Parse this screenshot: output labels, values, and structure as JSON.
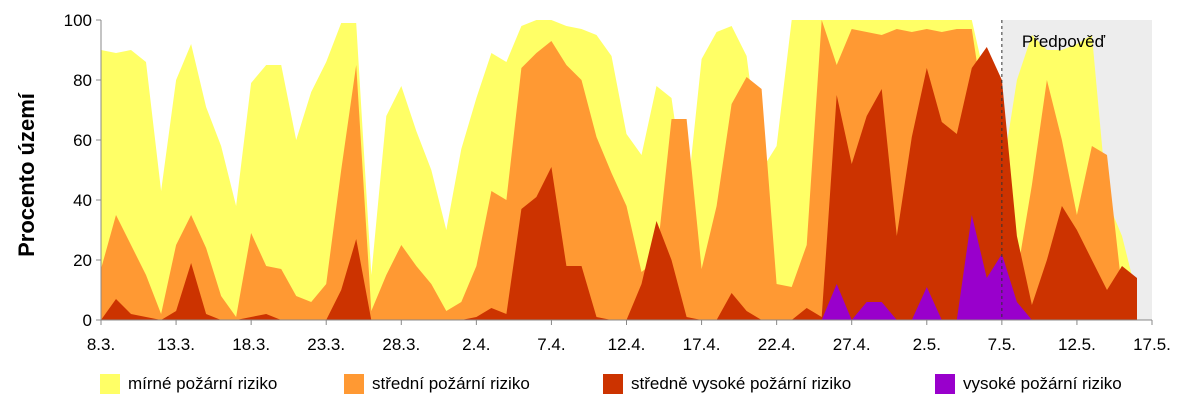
{
  "chart_data": {
    "type": "area",
    "title": "",
    "xlabel": "",
    "ylabel": "Procento území",
    "ylim": [
      0,
      100
    ],
    "yticks": [
      "0",
      "20",
      "40",
      "60",
      "80",
      "100"
    ],
    "x_tick_labels": [
      "8.3.",
      "13.3.",
      "18.3.",
      "23.3.",
      "28.3.",
      "2.4.",
      "7.4.",
      "12.4.",
      "17.4.",
      "22.4.",
      "27.4.",
      "2.5.",
      "7.5.",
      "12.5.",
      "17.5."
    ],
    "forecast_label": "Předpověď",
    "forecast_from_day": 60,
    "x_start": "8.3.",
    "series": [
      {
        "name": "mírné požární riziko",
        "color": "#FFFF66",
        "values": [
          90,
          89,
          90,
          86,
          43,
          80,
          92,
          71,
          58,
          38,
          79,
          85,
          85,
          60,
          76,
          86,
          99,
          99,
          15,
          68,
          78,
          63,
          50,
          30,
          57,
          74,
          89,
          86,
          98,
          100,
          100,
          98,
          97,
          95,
          88,
          62,
          55,
          78,
          74,
          39,
          87,
          96,
          98,
          88,
          50,
          58,
          100,
          100,
          100,
          100,
          100,
          100,
          100,
          100,
          100,
          100,
          100,
          100,
          100,
          78,
          48,
          80,
          95,
          90,
          90,
          92,
          95,
          40,
          28,
          8
        ]
      },
      {
        "name": "střední požární riziko",
        "color": "#FF9933",
        "values": [
          17,
          35,
          25,
          15,
          2,
          25,
          35,
          24,
          8,
          1,
          29,
          18,
          17,
          8,
          6,
          12,
          50,
          85,
          3,
          15,
          25,
          18,
          12,
          3,
          6,
          18,
          43,
          40,
          84,
          89,
          93,
          85,
          80,
          61,
          49,
          38,
          16,
          20,
          67,
          67,
          17,
          38,
          72,
          81,
          77,
          12,
          11,
          25,
          100,
          85,
          97,
          96,
          95,
          97,
          96,
          97,
          96,
          97,
          97,
          64,
          26,
          15,
          45,
          80,
          60,
          35,
          58,
          55,
          10,
          0
        ]
      },
      {
        "name": "středně vysoké požární riziko",
        "color": "#CC3300",
        "values": [
          0,
          7,
          2,
          1,
          0,
          3,
          19,
          2,
          0,
          0,
          1,
          2,
          0,
          0,
          0,
          0,
          10,
          27,
          0,
          0,
          0,
          0,
          0,
          0,
          0,
          1,
          4,
          2,
          37,
          41,
          51,
          18,
          18,
          1,
          0,
          0,
          12,
          33,
          20,
          1,
          0,
          0,
          9,
          3,
          0,
          0,
          0,
          4,
          1,
          75,
          52,
          68,
          77,
          28,
          61,
          84,
          66,
          62,
          84,
          91,
          80,
          28,
          5,
          20,
          38,
          30,
          20,
          10,
          18,
          14
        ]
      },
      {
        "name": "vysoké požární riziko",
        "color": "#9900CC",
        "values": [
          0,
          0,
          0,
          0,
          0,
          0,
          0,
          0,
          0,
          0,
          0,
          0,
          0,
          0,
          0,
          0,
          0,
          0,
          0,
          0,
          0,
          0,
          0,
          0,
          0,
          0,
          0,
          0,
          0,
          0,
          0,
          0,
          0,
          0,
          0,
          0,
          0,
          0,
          0,
          0,
          0,
          0,
          0,
          0,
          0,
          0,
          0,
          0,
          0,
          12,
          0,
          6,
          6,
          0,
          0,
          11,
          0,
          0,
          35,
          14,
          22,
          6,
          0,
          0,
          0,
          0,
          0,
          0,
          0,
          0
        ]
      }
    ],
    "legend_position": "bottom",
    "grid": false
  }
}
